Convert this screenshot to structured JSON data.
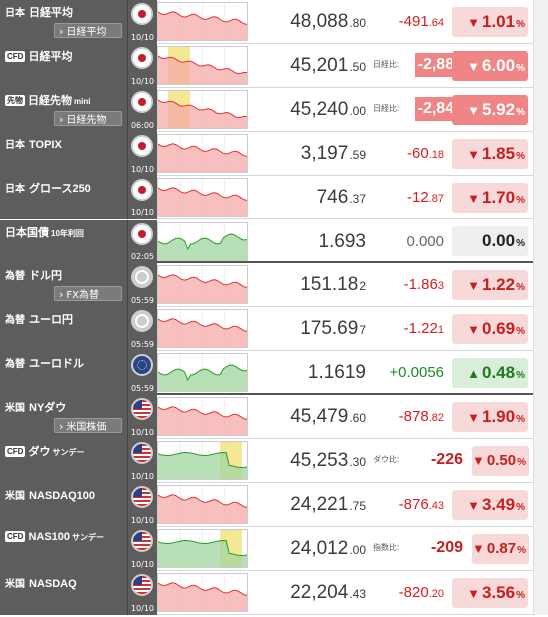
{
  "colors": {
    "up": "#1f8a1f",
    "down": "#d51d1d",
    "label_bg": "#5d5d5d",
    "highlight": "#f08585"
  },
  "rows": [
    {
      "id": "n225",
      "cat": "日本",
      "badge": "",
      "name": "日経平均",
      "sub": "",
      "link": "日経平均",
      "flag": "jp",
      "time": "10/10",
      "val_main": "48,088",
      "val_tail": ".80",
      "chg_main": "-491",
      "chg_tail": ".64",
      "chg_caption": "",
      "chg_dir": "down",
      "pct_main": "1.01",
      "pct_dir": "down",
      "pct_style": "",
      "chart": "down",
      "yellow": false,
      "gap": false
    },
    {
      "id": "n225cfd",
      "cat": "",
      "badge": "CFD",
      "name": "日経平均",
      "sub": "",
      "link": "",
      "flag": "jp",
      "time": "10/10",
      "val_main": "45,201",
      "val_tail": ".50",
      "chg_main": "-2,887",
      "chg_tail": "",
      "chg_caption": "日経比:",
      "chg_dir": "down",
      "pct_main": "6.00",
      "pct_dir": "down",
      "pct_style": "hl",
      "chart": "cfd-down",
      "yellow": true,
      "gap": false
    },
    {
      "id": "n225mini",
      "cat": "",
      "badge": "先物",
      "name": "日経先物",
      "sub": "mini",
      "link": "日経先物",
      "flag": "jp",
      "time": "06:00",
      "val_main": "45,240",
      "val_tail": ".00",
      "chg_main": "-2,848",
      "chg_tail": "",
      "chg_caption": "日経比:",
      "chg_dir": "down",
      "pct_main": "5.92",
      "pct_dir": "down",
      "pct_style": "hl",
      "chart": "cfd-down",
      "yellow": true,
      "gap": false
    },
    {
      "id": "topix",
      "cat": "日本",
      "badge": "",
      "name": "TOPIX",
      "sub": "",
      "link": "",
      "flag": "jp",
      "time": "10/10",
      "val_main": "3,197",
      "val_tail": ".59",
      "chg_main": "-60",
      "chg_tail": ".18",
      "chg_caption": "",
      "chg_dir": "down",
      "pct_main": "1.85",
      "pct_dir": "down",
      "pct_style": "",
      "chart": "down",
      "yellow": false,
      "gap": false
    },
    {
      "id": "growth",
      "cat": "日本",
      "badge": "",
      "name": "グロース250",
      "sub": "",
      "link": "",
      "flag": "jp",
      "time": "10/10",
      "val_main": "746",
      "val_tail": ".37",
      "chg_main": "-12",
      "chg_tail": ".87",
      "chg_caption": "",
      "chg_dir": "down",
      "pct_main": "1.70",
      "pct_dir": "down",
      "pct_style": "",
      "chart": "down",
      "yellow": false,
      "gap": false
    },
    {
      "id": "jgb",
      "cat": "",
      "badge": "",
      "name": "日本国債",
      "sub": "10年利回",
      "link": "",
      "flag": "jp",
      "time": "02:05",
      "val_main": "1.693",
      "val_tail": "",
      "chg_main": "0.000",
      "chg_tail": "",
      "chg_caption": "",
      "chg_dir": "flat",
      "pct_main": "0.00",
      "pct_dir": "flat",
      "pct_style": "",
      "chart": "green",
      "yellow": false,
      "gap": true
    },
    {
      "id": "usdjpy",
      "cat": "為替",
      "badge": "",
      "name": "ドル円",
      "sub": "",
      "link": "FX為替",
      "flag": "sp",
      "time": "05:59",
      "val_main": "151.18",
      "val_tail": "2",
      "chg_main": "-1.86",
      "chg_tail": "3",
      "chg_caption": "",
      "chg_dir": "down",
      "pct_main": "1.22",
      "pct_dir": "down",
      "pct_style": "",
      "chart": "down",
      "yellow": false,
      "gap": false
    },
    {
      "id": "eurjpy",
      "cat": "為替",
      "badge": "",
      "name": "ユーロ円",
      "sub": "",
      "link": "",
      "flag": "sp",
      "time": "05:59",
      "val_main": "175.69",
      "val_tail": "7",
      "chg_main": "-1.22",
      "chg_tail": "1",
      "chg_caption": "",
      "chg_dir": "down",
      "pct_main": "0.69",
      "pct_dir": "down",
      "pct_style": "",
      "chart": "down",
      "yellow": false,
      "gap": false
    },
    {
      "id": "eurusd",
      "cat": "為替",
      "badge": "",
      "name": "ユーロドル",
      "sub": "",
      "link": "",
      "flag": "fx",
      "time": "05:59",
      "val_main": "1.1619",
      "val_tail": "",
      "chg_main": "+0.0056",
      "chg_tail": "",
      "chg_caption": "",
      "chg_dir": "up",
      "pct_main": "0.48",
      "pct_dir": "up",
      "pct_style": "",
      "chart": "green",
      "yellow": false,
      "gap": true
    },
    {
      "id": "dow",
      "cat": "米国",
      "badge": "",
      "name": "NYダウ",
      "sub": "",
      "link": "米国株価",
      "flag": "us",
      "time": "10/10",
      "val_main": "45,479",
      "val_tail": ".60",
      "chg_main": "-878",
      "chg_tail": ".82",
      "chg_caption": "",
      "chg_dir": "down",
      "pct_main": "1.90",
      "pct_dir": "down",
      "pct_style": "",
      "chart": "down",
      "yellow": false,
      "gap": false
    },
    {
      "id": "dowcfd",
      "cat": "",
      "badge": "CFD",
      "name": "ダウ",
      "sub": "サンデー",
      "link": "",
      "flag": "us",
      "time": "10/10",
      "val_main": "45,253",
      "val_tail": ".30",
      "chg_main": "-226",
      "chg_tail": "",
      "chg_caption": "ダウ比:",
      "chg_dir": "down",
      "pct_main": "0.50",
      "pct_dir": "down",
      "pct_style": "small",
      "chart": "cfd-green",
      "yellow": true,
      "gap": false
    },
    {
      "id": "nas100",
      "cat": "米国",
      "badge": "",
      "name": "NASDAQ100",
      "sub": "",
      "link": "",
      "flag": "us",
      "time": "10/10",
      "val_main": "24,221",
      "val_tail": ".75",
      "chg_main": "-876",
      "chg_tail": ".43",
      "chg_caption": "",
      "chg_dir": "down",
      "pct_main": "3.49",
      "pct_dir": "down",
      "pct_style": "",
      "chart": "down",
      "yellow": false,
      "gap": false
    },
    {
      "id": "nas100cfd",
      "cat": "",
      "badge": "CFD",
      "name": "NAS100",
      "sub": "サンデー",
      "link": "",
      "flag": "us",
      "time": "10/10",
      "val_main": "24,012",
      "val_tail": ".00",
      "chg_main": "-209",
      "chg_tail": "",
      "chg_caption": "指数比:",
      "chg_dir": "down",
      "pct_main": "0.87",
      "pct_dir": "down",
      "pct_style": "small",
      "chart": "cfd-green",
      "yellow": true,
      "gap": false
    },
    {
      "id": "nasdaq",
      "cat": "米国",
      "badge": "",
      "name": "NASDAQ",
      "sub": "",
      "link": "",
      "flag": "us",
      "time": "10/10",
      "val_main": "22,204",
      "val_tail": ".43",
      "chg_main": "-820",
      "chg_tail": ".20",
      "chg_caption": "",
      "chg_dir": "down",
      "pct_main": "3.56",
      "pct_dir": "down",
      "pct_style": "",
      "chart": "down",
      "yellow": false,
      "gap": false
    }
  ],
  "unit": "%"
}
